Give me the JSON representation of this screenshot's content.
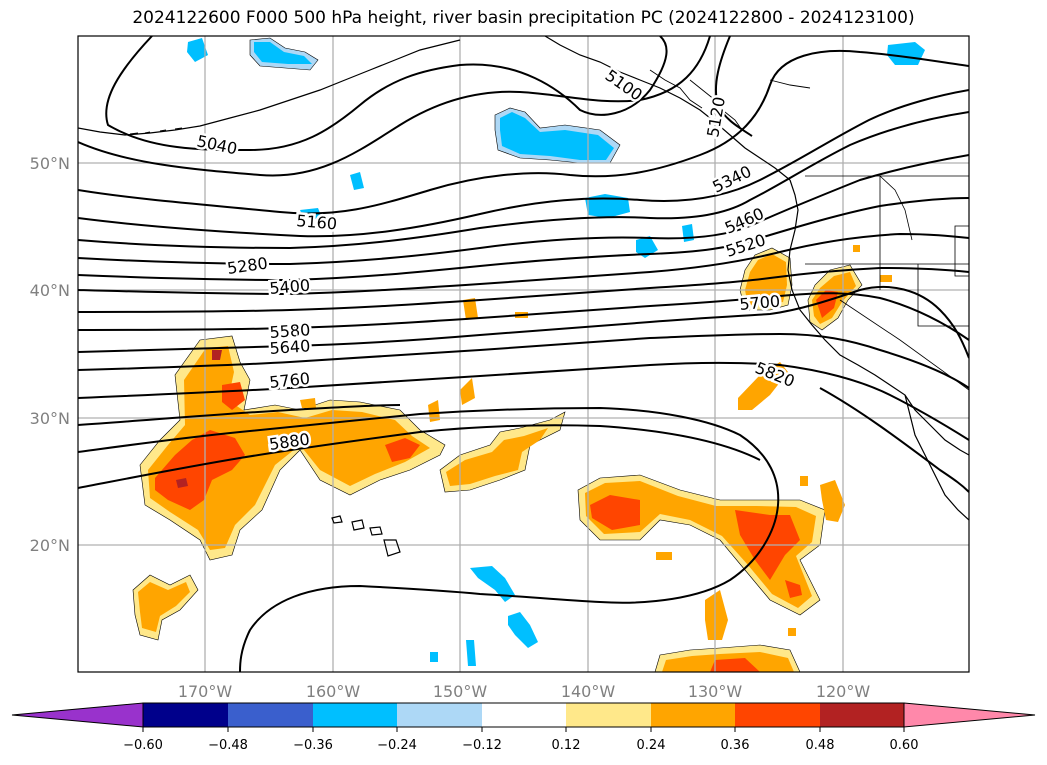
{
  "title": "2024122600 F000 500 hPa height, river basin precipitation PC (2024122800 - 2024123100)",
  "lat_labels": [
    "50°N",
    "40°N",
    "30°N",
    "20°N"
  ],
  "lon_labels": [
    "170°W",
    "160°W",
    "150°W",
    "140°W",
    "130°W",
    "120°W"
  ],
  "contour_labels": [
    "5040",
    "5100",
    "5120",
    "5160",
    "5280",
    "5340",
    "5400",
    "5460",
    "5520",
    "5580",
    "5640",
    "5700",
    "5760",
    "5820",
    "5880"
  ],
  "colorbar": {
    "ticks": [
      "−0.60",
      "−0.48",
      "−0.36",
      "−0.24",
      "−0.12",
      "0.12",
      "0.24",
      "0.36",
      "0.48",
      "0.60"
    ],
    "colors": [
      "#9932cc",
      "#00008b",
      "#3a5fcd",
      "#00bfff",
      "#add8f6",
      "#ffffff",
      "#ffe88a",
      "#ffa500",
      "#ff4500",
      "#b22222",
      "#ff88aa"
    ]
  },
  "shading_colors": {
    "positive_low": "#ffe88a",
    "positive_mid": "#ffa500",
    "positive_high": "#ff4500",
    "positive_max": "#b22222",
    "negative_low": "#add8f6",
    "negative_mid": "#00bfff"
  }
}
